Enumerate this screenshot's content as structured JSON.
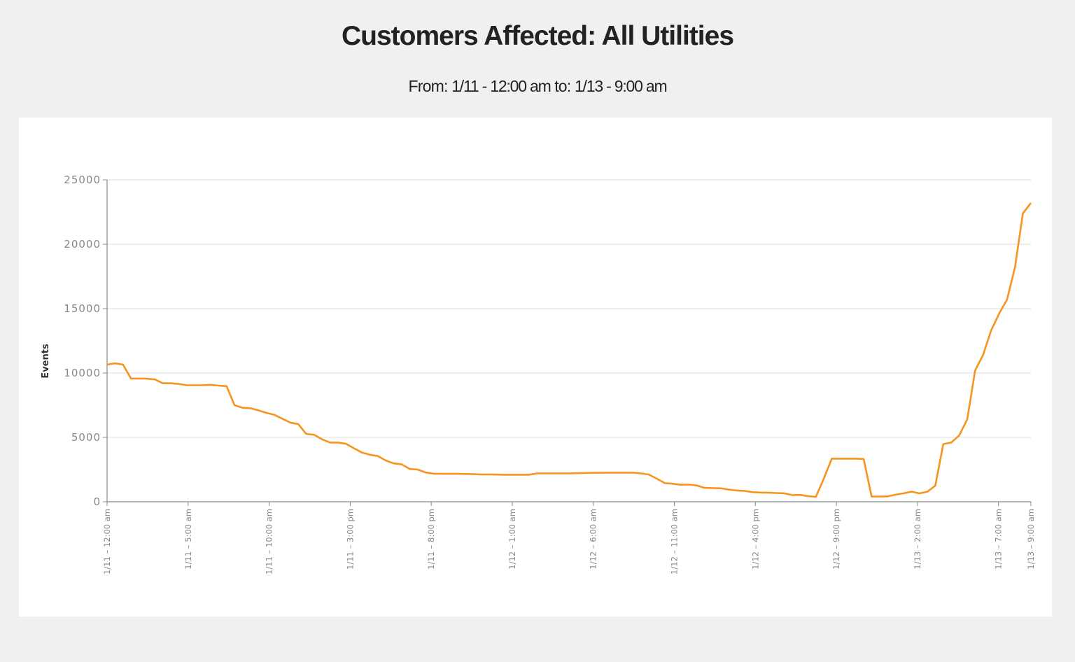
{
  "header": {
    "title": "Customers Affected: All Utilities",
    "from_label": "From:",
    "from_value": "1/11 - 12:00 am",
    "to_label": "to:",
    "to_value": "1/13 - 9:00 am"
  },
  "colors": {
    "line": "#f7941d",
    "grid": "#dddddd",
    "axis": "#888888",
    "tick_text": "#888888",
    "background": "#f0f0f0",
    "panel": "#ffffff"
  },
  "chart_data": {
    "type": "line",
    "title": "Customers Affected: All Utilities",
    "subtitle": "From: 1/11 - 12:00 am to: 1/13 - 9:00 am",
    "xlabel": "",
    "ylabel": "Events",
    "ylim": [
      0,
      25000
    ],
    "xlim_hours": [
      0,
      57
    ],
    "grid": true,
    "legend": "none",
    "y_ticks": [
      0,
      5000,
      10000,
      15000,
      20000,
      25000
    ],
    "x_ticks": [
      {
        "hour": 0,
        "label": "1/11 – 12:00 am"
      },
      {
        "hour": 5,
        "label": "1/11 – 5:00 am"
      },
      {
        "hour": 10,
        "label": "1/11 – 10:00 am"
      },
      {
        "hour": 15,
        "label": "1/11 – 3:00 pm"
      },
      {
        "hour": 20,
        "label": "1/11 – 8:00 pm"
      },
      {
        "hour": 25,
        "label": "1/12 – 1:00 am"
      },
      {
        "hour": 30,
        "label": "1/12 – 6:00 am"
      },
      {
        "hour": 35,
        "label": "1/12 – 11:00 am"
      },
      {
        "hour": 40,
        "label": "1/12 – 4:00 pm"
      },
      {
        "hour": 45,
        "label": "1/12 – 9:00 pm"
      },
      {
        "hour": 50,
        "label": "1/13 – 2:00 am"
      },
      {
        "hour": 55,
        "label": "1/13 – 7:00 am"
      },
      {
        "hour": 57,
        "label": "1/13 – 9:00 am"
      }
    ],
    "series": [
      {
        "name": "Customers Affected",
        "x_unit": "hours since 1/11 12:00 am",
        "points": [
          [
            0,
            10650
          ],
          [
            0.5,
            10750
          ],
          [
            1,
            10650
          ],
          [
            1.5,
            9570
          ],
          [
            2,
            9570
          ],
          [
            2.5,
            9560
          ],
          [
            3,
            9500
          ],
          [
            3.5,
            9200
          ],
          [
            4,
            9200
          ],
          [
            4.5,
            9150
          ],
          [
            5,
            9050
          ],
          [
            5.5,
            9050
          ],
          [
            6,
            9050
          ],
          [
            6.5,
            9080
          ],
          [
            7,
            9020
          ],
          [
            7.5,
            8980
          ],
          [
            8,
            7500
          ],
          [
            8.5,
            7300
          ],
          [
            9,
            7260
          ],
          [
            9.5,
            7100
          ],
          [
            10,
            6900
          ],
          [
            10.5,
            6750
          ],
          [
            11,
            6450
          ],
          [
            11.5,
            6150
          ],
          [
            12,
            6030
          ],
          [
            12.5,
            5270
          ],
          [
            13,
            5200
          ],
          [
            13.5,
            4850
          ],
          [
            14,
            4600
          ],
          [
            14.5,
            4600
          ],
          [
            15,
            4500
          ],
          [
            15.5,
            4150
          ],
          [
            16,
            3820
          ],
          [
            16.5,
            3650
          ],
          [
            17,
            3550
          ],
          [
            17.5,
            3200
          ],
          [
            18,
            2980
          ],
          [
            18.5,
            2900
          ],
          [
            19,
            2550
          ],
          [
            19.5,
            2500
          ],
          [
            20,
            2270
          ],
          [
            20.5,
            2180
          ],
          [
            21,
            2170
          ],
          [
            21.5,
            2170
          ],
          [
            22,
            2170
          ],
          [
            22.5,
            2160
          ],
          [
            23,
            2140
          ],
          [
            23.5,
            2120
          ],
          [
            24,
            2120
          ],
          [
            24.5,
            2110
          ],
          [
            25,
            2100
          ],
          [
            25.5,
            2100
          ],
          [
            26,
            2100
          ],
          [
            26.5,
            2100
          ],
          [
            27,
            2200
          ],
          [
            27.5,
            2200
          ],
          [
            28,
            2200
          ],
          [
            28.5,
            2200
          ],
          [
            29,
            2200
          ],
          [
            29.5,
            2220
          ],
          [
            30,
            2240
          ],
          [
            30.5,
            2250
          ],
          [
            31,
            2250
          ],
          [
            31.5,
            2260
          ],
          [
            32,
            2260
          ],
          [
            32.5,
            2260
          ],
          [
            33,
            2260
          ],
          [
            33.5,
            2200
          ],
          [
            34,
            2120
          ],
          [
            34.5,
            1800
          ],
          [
            35,
            1450
          ],
          [
            35.5,
            1400
          ],
          [
            36,
            1320
          ],
          [
            36.5,
            1330
          ],
          [
            37,
            1270
          ],
          [
            37.5,
            1080
          ],
          [
            38,
            1060
          ],
          [
            38.5,
            1050
          ],
          [
            39,
            950
          ],
          [
            39.5,
            880
          ],
          [
            40,
            850
          ],
          [
            40.5,
            750
          ],
          [
            41,
            720
          ],
          [
            41.5,
            700
          ],
          [
            42,
            680
          ],
          [
            42.5,
            660
          ],
          [
            43,
            520
          ],
          [
            43.5,
            530
          ],
          [
            44,
            440
          ],
          [
            44.5,
            380
          ],
          [
            45,
            1800
          ],
          [
            45.5,
            3350
          ],
          [
            46,
            3350
          ],
          [
            46.5,
            3350
          ],
          [
            47,
            3350
          ],
          [
            47.5,
            3320
          ],
          [
            48,
            400
          ],
          [
            48.5,
            400
          ],
          [
            49,
            420
          ],
          [
            49.5,
            550
          ],
          [
            50,
            650
          ],
          [
            50.5,
            780
          ],
          [
            51,
            650
          ],
          [
            51.5,
            780
          ],
          [
            52,
            1250
          ],
          [
            52.5,
            4480
          ],
          [
            53,
            4600
          ],
          [
            53.5,
            5150
          ],
          [
            54,
            6400
          ],
          [
            54.5,
            10200
          ],
          [
            55,
            11400
          ],
          [
            55.5,
            13300
          ],
          [
            56,
            14600
          ],
          [
            56.5,
            15700
          ],
          [
            57,
            18200
          ],
          [
            57.5,
            22400
          ],
          [
            58,
            23200
          ]
        ]
      }
    ]
  }
}
